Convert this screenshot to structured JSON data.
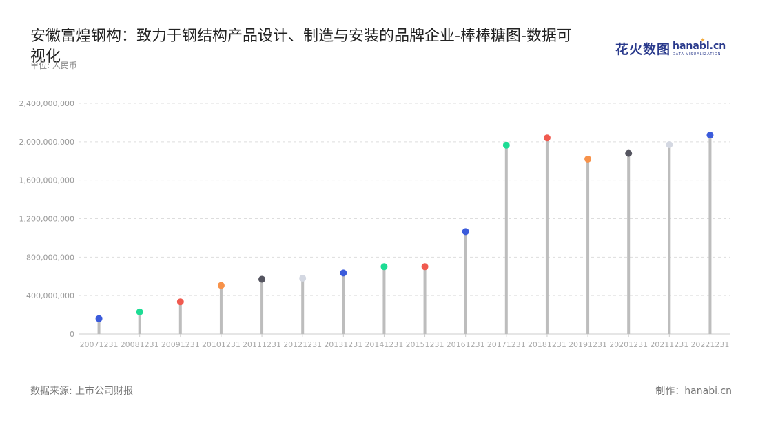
{
  "header": {
    "title": "安徽富煌钢构：致力于钢结构产品设计、制造与安装的品牌企业-棒棒糖图-数据可视化",
    "unit": "单位: 人民币"
  },
  "footer": {
    "source": "数据来源: 上市公司财报",
    "credit": "制作：hanabi.cn"
  },
  "logo": {
    "cn_text": "花火数图",
    "en_text": "hanabi.cn",
    "sub_text": "DATA VISUALIZATION"
  },
  "chart_data": {
    "type": "lollipop",
    "categories": [
      "20071231",
      "20081231",
      "20091231",
      "20101231",
      "20111231",
      "20121231",
      "20131231",
      "20141231",
      "20151231",
      "20161231",
      "20171231",
      "20181231",
      "20191231",
      "20201231",
      "20211231",
      "20221231"
    ],
    "values": [
      160000000,
      230000000,
      335000000,
      505000000,
      570000000,
      580000000,
      635000000,
      700000000,
      700000000,
      1065000000,
      1965000000,
      2040000000,
      1820000000,
      1880000000,
      1970000000,
      2070000000
    ],
    "colors": [
      "#3b5bdb",
      "#1ddc94",
      "#f05a4f",
      "#f7924a",
      "#555560",
      "#d4d8e2",
      "#3b5bdb",
      "#1ddc94",
      "#f05a4f",
      "#3b5bdb",
      "#1ddc94",
      "#f05a4f",
      "#f7924a",
      "#555560",
      "#d4d8e2",
      "#3b5bdb"
    ],
    "yticks": [
      0,
      400000000,
      800000000,
      1200000000,
      1600000000,
      2000000000,
      2400000000
    ],
    "ytick_labels": [
      "0",
      "400,000,000",
      "800,000,000",
      "1,200,000,000",
      "1,600,000,000",
      "2,000,000,000",
      "2,400,000,000"
    ],
    "ylim": [
      0,
      2400000000
    ],
    "grid": true,
    "stem_color": "#bdbdbd"
  }
}
